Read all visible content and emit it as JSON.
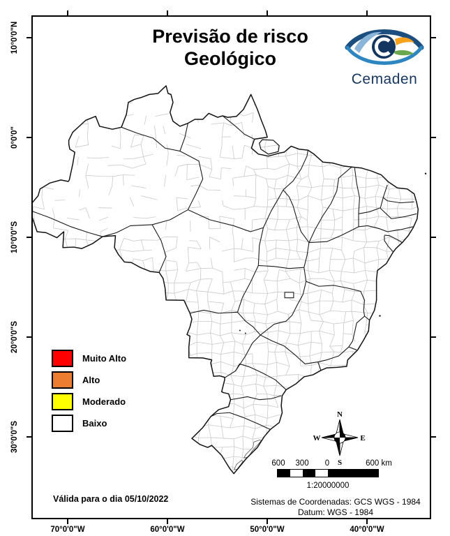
{
  "title": {
    "line1": "Previsão de risco",
    "line2": "Geológico"
  },
  "logo": {
    "name": "Cemaden"
  },
  "axes": {
    "lat_labels": [
      "10°0'0\"N",
      "0°0'0\"",
      "10°0'0\"S",
      "20°0'0\"S",
      "30°0'0\"S"
    ],
    "lon_labels": [
      "70°0'0\"W",
      "60°0'0\"W",
      "50°0'0\"W",
      "40°0'0\"W"
    ]
  },
  "legend": {
    "items": [
      {
        "label": "Muito Alto",
        "color": "#FE0000"
      },
      {
        "label": "Alto",
        "color": "#ED7D31"
      },
      {
        "label": "Moderado",
        "color": "#FFFF00"
      },
      {
        "label": "Baixo",
        "color": "#FFFFFF"
      }
    ]
  },
  "validity": "Válida para o dia 05/10/2022",
  "compass": {
    "n": "N",
    "e": "E",
    "s": "S",
    "w": "W"
  },
  "scalebar": {
    "labels": [
      "600",
      "300",
      "0",
      "600 km"
    ],
    "ratio": "1:20000000"
  },
  "footer": {
    "coord_system": "Sistemas de Coordenadas: GCS WGS - 1984",
    "datum": "Datum: WGS - 1984"
  },
  "colors": {
    "accent_navy": "#17365e",
    "state_border": "#1a1a1a",
    "muni_border": "#c9c9c9"
  }
}
